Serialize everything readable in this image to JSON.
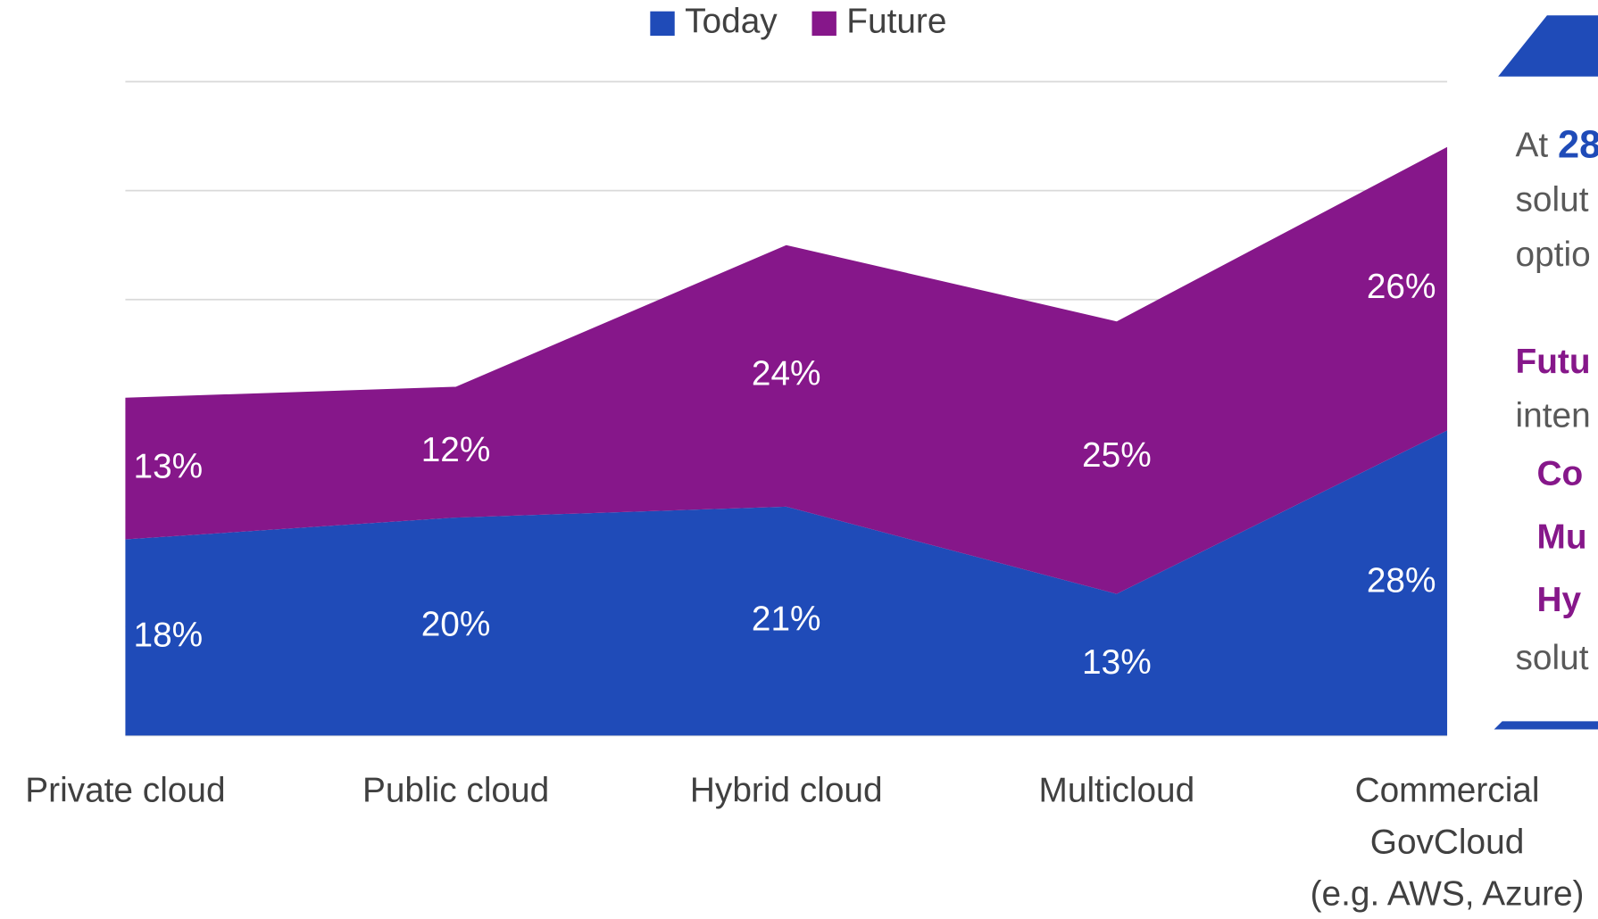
{
  "chart_data": {
    "type": "stacked_area",
    "legend": "top",
    "categories": [
      "Private cloud",
      "Public cloud",
      "Hybrid cloud",
      "Multicloud",
      "Commercial\nGovCloud\n(e.g. AWS, Azure)"
    ],
    "series": [
      {
        "name": "Today",
        "color": "#1f4bb8",
        "values": [
          18,
          20,
          21,
          13,
          28
        ],
        "value_labels": [
          "18%",
          "20%",
          "21%",
          "13%",
          "28%"
        ]
      },
      {
        "name": "Future",
        "color": "#86178a",
        "values": [
          13,
          12,
          24,
          25,
          26
        ],
        "value_labels": [
          "13%",
          "12%",
          "24%",
          "25%",
          "26%"
        ]
      }
    ],
    "ylim": [
      0,
      60
    ],
    "yticks": [
      0,
      10,
      20,
      30,
      40,
      50,
      60
    ],
    "grid": true
  },
  "panel": {
    "line1_prefix": "At",
    "line1_highlight": "28",
    "line2": "solut",
    "line3": "optio",
    "line4": "Futu",
    "line5": "inten",
    "item1": "Co",
    "item2": "Mu",
    "item3": "Hy",
    "line6": "solut"
  }
}
